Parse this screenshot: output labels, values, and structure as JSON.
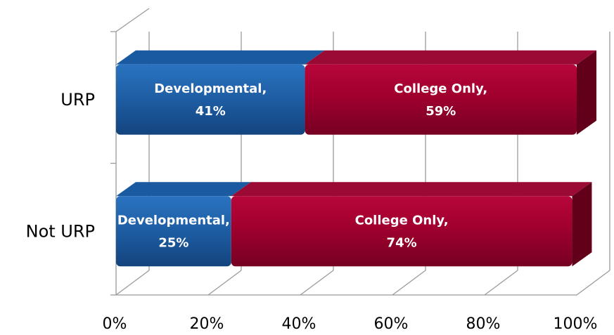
{
  "chart_data": {
    "type": "bar",
    "orientation": "horizontal",
    "stacked": true,
    "percent_stacked": true,
    "categories": [
      "URP",
      "Not URP"
    ],
    "series": [
      {
        "name": "Developmental",
        "values": [
          41,
          25
        ],
        "labels": [
          "41%",
          "25%"
        ],
        "color": "#1F5FA6"
      },
      {
        "name": "College Only",
        "values": [
          59,
          74
        ],
        "labels": [
          "59%",
          "74%"
        ],
        "color": "#A0002E"
      }
    ],
    "xlim": [
      0,
      100
    ],
    "xticks": [
      "0%",
      "20%",
      "40%",
      "60%",
      "80%",
      "100%"
    ],
    "grid": true,
    "legend": "none",
    "style": "3d"
  }
}
